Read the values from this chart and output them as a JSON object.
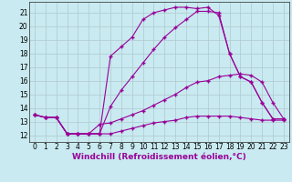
{
  "xlabel": "Windchill (Refroidissement éolien,°C)",
  "ylabel": "",
  "bg_color": "#c8eaf0",
  "line_color": "#990099",
  "grid_color": "#b0c8d0",
  "xlim": [
    -0.5,
    23.5
  ],
  "ylim": [
    11.5,
    21.8
  ],
  "xticks": [
    0,
    1,
    2,
    3,
    4,
    5,
    6,
    7,
    8,
    9,
    10,
    11,
    12,
    13,
    14,
    15,
    16,
    17,
    18,
    19,
    20,
    21,
    22,
    23
  ],
  "yticks": [
    12,
    13,
    14,
    15,
    16,
    17,
    18,
    19,
    20,
    21
  ],
  "line1_x": [
    0,
    1,
    2,
    3,
    4,
    5,
    6,
    7,
    8,
    9,
    10,
    11,
    12,
    13,
    14,
    15,
    16,
    17,
    18,
    19,
    20,
    21,
    22,
    23
  ],
  "line1_y": [
    13.5,
    13.3,
    13.3,
    12.1,
    12.1,
    12.1,
    12.1,
    17.8,
    18.5,
    19.2,
    20.5,
    21.0,
    21.2,
    21.4,
    21.4,
    21.3,
    21.4,
    20.8,
    18.0,
    16.3,
    15.9,
    14.4,
    13.2,
    13.2
  ],
  "line2_x": [
    0,
    1,
    2,
    3,
    4,
    5,
    6,
    7,
    8,
    9,
    10,
    11,
    12,
    13,
    14,
    15,
    16,
    17,
    18,
    19,
    20,
    21,
    22,
    23
  ],
  "line2_y": [
    13.5,
    13.3,
    13.3,
    12.1,
    12.1,
    12.1,
    12.1,
    14.1,
    15.3,
    16.3,
    17.3,
    18.3,
    19.2,
    19.9,
    20.5,
    21.1,
    21.1,
    21.0,
    18.0,
    16.3,
    15.9,
    14.4,
    13.2,
    13.2
  ],
  "line3_x": [
    0,
    1,
    2,
    3,
    4,
    5,
    6,
    7,
    8,
    9,
    10,
    11,
    12,
    13,
    14,
    15,
    16,
    17,
    18,
    19,
    20,
    21,
    22,
    23
  ],
  "line3_y": [
    13.5,
    13.3,
    13.3,
    12.1,
    12.1,
    12.1,
    12.8,
    12.9,
    13.2,
    13.5,
    13.8,
    14.2,
    14.6,
    15.0,
    15.5,
    15.9,
    16.0,
    16.3,
    16.4,
    16.5,
    16.4,
    15.9,
    14.4,
    13.2
  ],
  "line4_x": [
    0,
    1,
    2,
    3,
    4,
    5,
    6,
    7,
    8,
    9,
    10,
    11,
    12,
    13,
    14,
    15,
    16,
    17,
    18,
    19,
    20,
    21,
    22,
    23
  ],
  "line4_y": [
    13.5,
    13.3,
    13.3,
    12.1,
    12.1,
    12.1,
    12.1,
    12.1,
    12.3,
    12.5,
    12.7,
    12.9,
    13.0,
    13.1,
    13.3,
    13.4,
    13.4,
    13.4,
    13.4,
    13.3,
    13.2,
    13.1,
    13.1,
    13.1
  ],
  "markersize": 2.5,
  "linewidth": 0.8,
  "label_fontsize": 6.5,
  "tick_fontsize": 5.5
}
